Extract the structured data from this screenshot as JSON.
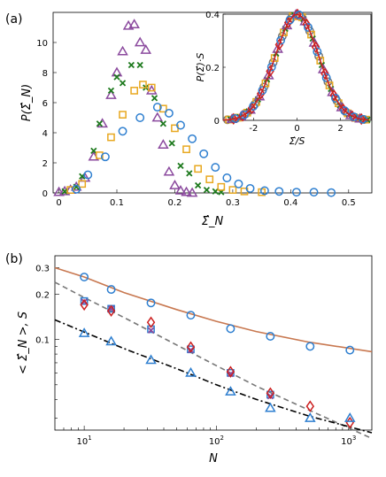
{
  "colors": {
    "blue": "#2E7FD0",
    "orange": "#E8A820",
    "green": "#1E7A1E",
    "purple": "#8B4A9E",
    "red": "#CC2020",
    "gray": "#777777",
    "brown": "#C87850"
  },
  "panels": {
    "a_label": "(a)",
    "b_label": "(b)"
  },
  "chart_data": [
    {
      "type": "scatter",
      "panel": "(a)",
      "xlabel": "Σ̂_N",
      "ylabel": "P(Σ̂_N)",
      "xlim": [
        -0.01,
        0.54
      ],
      "ylim": [
        0,
        12
      ],
      "xticks": [
        "0",
        "0.1",
        "0.2",
        "0.3",
        "0.4",
        "0.5"
      ],
      "yticks": [
        "0",
        "2",
        "4",
        "6",
        "8",
        "10"
      ],
      "series": [
        {
          "marker": "triangle",
          "color": "purple",
          "x": [
            0.0,
            0.01,
            0.02,
            0.03,
            0.045,
            0.06,
            0.075,
            0.09,
            0.1,
            0.11,
            0.12,
            0.13,
            0.14,
            0.15,
            0.16,
            0.17,
            0.18,
            0.19,
            0.2,
            0.21,
            0.22,
            0.23
          ],
          "y": [
            0.05,
            0.1,
            0.2,
            0.4,
            1.0,
            2.4,
            4.6,
            6.5,
            8.0,
            9.4,
            11.1,
            11.2,
            10.0,
            9.5,
            6.8,
            5.0,
            3.2,
            1.4,
            0.5,
            0.15,
            0.05,
            0.0
          ]
        },
        {
          "marker": "x",
          "color": "green",
          "x": [
            0.01,
            0.03,
            0.04,
            0.06,
            0.07,
            0.09,
            0.1,
            0.11,
            0.125,
            0.14,
            0.15,
            0.165,
            0.18,
            0.195,
            0.21,
            0.225,
            0.24,
            0.255,
            0.27,
            0.28
          ],
          "y": [
            0.1,
            0.4,
            1.1,
            2.8,
            4.6,
            6.8,
            7.7,
            7.3,
            8.5,
            8.5,
            7.0,
            6.3,
            4.6,
            3.3,
            1.8,
            1.3,
            0.5,
            0.2,
            0.1,
            0.05
          ]
        },
        {
          "marker": "square",
          "color": "orange",
          "x": [
            0.02,
            0.04,
            0.07,
            0.09,
            0.11,
            0.13,
            0.145,
            0.16,
            0.18,
            0.2,
            0.22,
            0.24,
            0.26,
            0.28,
            0.3,
            0.32,
            0.35
          ],
          "y": [
            0.2,
            0.6,
            2.5,
            3.7,
            5.2,
            6.8,
            7.2,
            7.0,
            5.6,
            4.3,
            2.9,
            1.6,
            0.9,
            0.4,
            0.2,
            0.1,
            0.05
          ]
        },
        {
          "marker": "circle",
          "color": "blue",
          "x": [
            0.03,
            0.05,
            0.08,
            0.11,
            0.14,
            0.17,
            0.19,
            0.21,
            0.23,
            0.25,
            0.27,
            0.29,
            0.31,
            0.33,
            0.355,
            0.38,
            0.41,
            0.44,
            0.47
          ],
          "y": [
            0.25,
            1.2,
            2.4,
            4.1,
            5.0,
            5.7,
            5.3,
            4.5,
            3.6,
            2.6,
            1.7,
            1.0,
            0.6,
            0.3,
            0.15,
            0.1,
            0.05,
            0.05,
            0.02
          ]
        }
      ]
    },
    {
      "type": "line",
      "panel": "(a) inset",
      "xlabel": "Σ̂/S",
      "ylabel": "P(Σ̂)·S",
      "xlim": [
        -3.4,
        3.4
      ],
      "ylim": [
        0,
        0.4
      ],
      "xticks": [
        "-2",
        "0",
        "2"
      ],
      "yticks": [
        "0",
        "0.2",
        "0.4"
      ],
      "curve": {
        "mean": 0,
        "sd": 1,
        "peak": 0.399
      }
    },
    {
      "type": "scatter",
      "panel": "(b)",
      "xlabel": "N",
      "ylabel": "< Σ̂_N >, S",
      "xscale": "log",
      "yscale": "log",
      "xlim": [
        6,
        1500
      ],
      "ylim": [
        0.025,
        0.36
      ],
      "xticks": [
        "10^1",
        "10^2",
        "10^3"
      ],
      "yticks": [
        "0.1",
        "0.2",
        "0.3"
      ],
      "series": [
        {
          "marker": "circle",
          "color": "blue",
          "x": [
            10,
            16,
            32,
            64,
            128,
            256,
            512,
            1024
          ],
          "y": [
            0.26,
            0.215,
            0.175,
            0.145,
            0.118,
            0.105,
            0.09,
            0.085
          ]
        },
        {
          "marker": "square",
          "color": "blue",
          "x": [
            10,
            16,
            32,
            64,
            128,
            256
          ],
          "y": [
            0.18,
            0.16,
            0.117,
            0.086,
            0.06,
            0.043
          ]
        },
        {
          "marker": "x",
          "color": "purple",
          "x": [
            10,
            16,
            32,
            64,
            128,
            256
          ],
          "y": [
            0.178,
            0.16,
            0.115,
            0.085,
            0.059,
            0.042
          ]
        },
        {
          "marker": "diamond",
          "color": "red",
          "x": [
            10,
            16,
            32,
            64,
            128,
            256,
            512,
            1024
          ],
          "y": [
            0.17,
            0.155,
            0.13,
            0.089,
            0.061,
            0.044,
            0.036,
            0.028
          ]
        },
        {
          "marker": "triangle",
          "color": "blue",
          "x": [
            10,
            16,
            32,
            64,
            128,
            256,
            512,
            1024
          ],
          "y": [
            0.11,
            0.097,
            0.073,
            0.06,
            0.045,
            0.035,
            0.03,
            0.03
          ]
        }
      ],
      "fits": [
        {
          "style": "solid",
          "color": "brown",
          "x": [
            6,
            10,
            20,
            50,
            100,
            200,
            500,
            1500
          ],
          "y": [
            0.3,
            0.26,
            0.205,
            0.158,
            0.132,
            0.113,
            0.096,
            0.083
          ]
        },
        {
          "style": "dashed",
          "color": "gray",
          "x": [
            6,
            10,
            20,
            50,
            100,
            200,
            500,
            1500
          ],
          "y": [
            0.24,
            0.19,
            0.14,
            0.092,
            0.067,
            0.049,
            0.034,
            0.022
          ]
        },
        {
          "style": "dashdot",
          "color": "black",
          "x": [
            6,
            10,
            20,
            50,
            100,
            200,
            500,
            1500
          ],
          "y": [
            0.135,
            0.112,
            0.087,
            0.064,
            0.05,
            0.04,
            0.031,
            0.024
          ]
        }
      ]
    }
  ]
}
